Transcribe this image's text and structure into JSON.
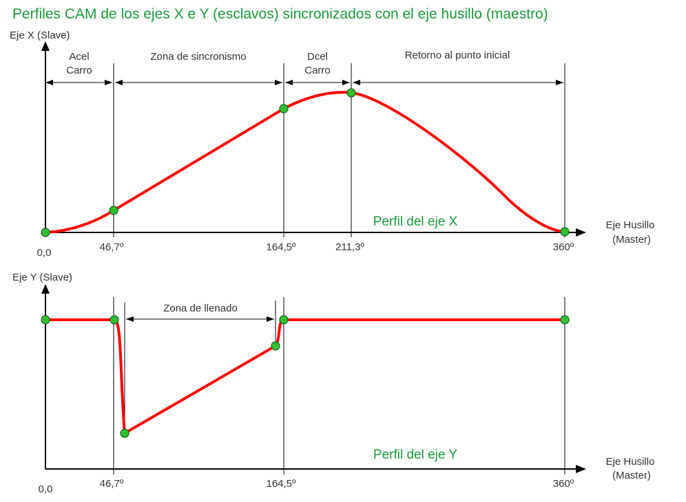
{
  "title": "Perfiles CAM de los ejes X e Y (esclavos) sincronizados con el eje husillo (maestro)",
  "top_chart": {
    "y_axis_label": "Eje X (Slave)",
    "x_axis_label_line1": "Eje Husillo",
    "x_axis_label_line2": "(Master)",
    "profile_label": "Perfil del eje X",
    "origin_label": "0,0",
    "ticks": [
      "46,7º",
      "164,5º",
      "211,3º",
      "360º"
    ],
    "zones": [
      {
        "line1": "Acel",
        "line2": "Carro"
      },
      {
        "line1": "Zona de sincronismo",
        "line2": ""
      },
      {
        "line1": "Dcel",
        "line2": "Carro"
      },
      {
        "line1": "Retorno al punto inicial",
        "line2": ""
      }
    ]
  },
  "bottom_chart": {
    "y_axis_label": "Eje Y (Slave)",
    "x_axis_label_line1": "Eje Husillo",
    "x_axis_label_line2": "(Master)",
    "profile_label": "Perfil del eje Y",
    "origin_label": "0,0",
    "ticks": [
      "46,7º",
      "164,5º",
      "360º"
    ],
    "zone_label": "Zona de llenado"
  },
  "colors": {
    "title": "#1a9a3c",
    "curve": "#ff0000",
    "points": "#2fbf2f"
  }
}
